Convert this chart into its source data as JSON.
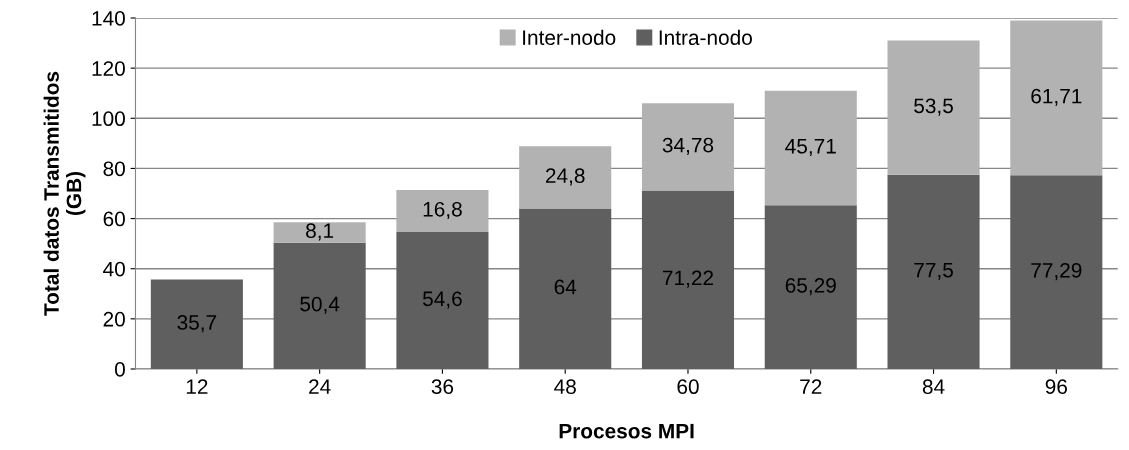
{
  "chart_data": {
    "type": "bar",
    "stacked": true,
    "xlabel": "Procesos MPI",
    "ylabel": "Total datos Transmitidos\n(GB)",
    "categories": [
      "12",
      "24",
      "36",
      "48",
      "60",
      "72",
      "84",
      "96"
    ],
    "series": [
      {
        "name": "Intra-nodo",
        "color": "#5f5f5f",
        "values": [
          35.7,
          50.4,
          54.6,
          64,
          71.22,
          65.29,
          77.5,
          77.29
        ],
        "value_labels": [
          "35,7",
          "50,4",
          "54,6",
          "64",
          "71,22",
          "65,29",
          "77,5",
          "77,29"
        ]
      },
      {
        "name": "Inter-nodo",
        "color": "#b2b2b2",
        "values": [
          null,
          8.1,
          16.8,
          24.8,
          34.78,
          45.71,
          53.5,
          61.71
        ],
        "value_labels": [
          null,
          "8,1",
          "16,8",
          "24,8",
          "34,78",
          "45,71",
          "53,5",
          "61,71"
        ]
      }
    ],
    "ylim": [
      0,
      140
    ],
    "yticks": [
      0,
      20,
      40,
      60,
      80,
      100,
      120,
      140
    ],
    "grid": "y",
    "legend": "top"
  }
}
